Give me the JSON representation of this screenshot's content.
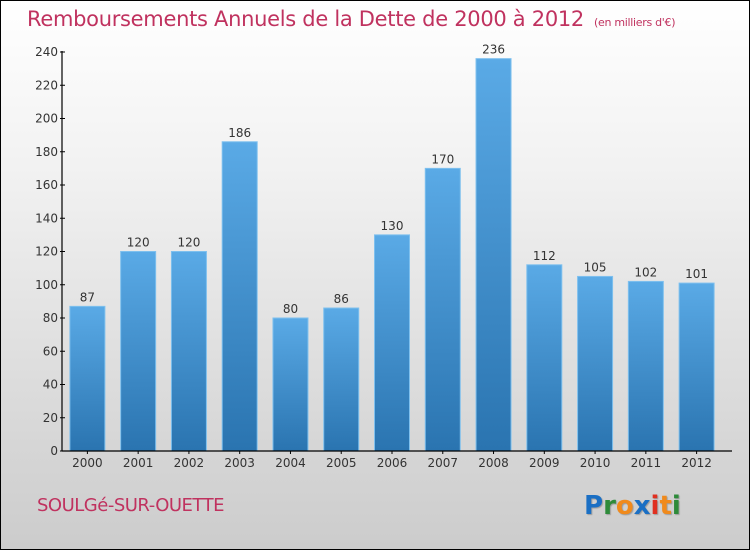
{
  "header": {
    "title": "Remboursements Annuels de la Dette de 2000 à 2012",
    "subtitle": "(en milliers d'€)"
  },
  "footer": {
    "city": "SOULGé-SUR-OUETTE",
    "logo": {
      "letters": [
        {
          "char": "P",
          "color": "#1a6fc4"
        },
        {
          "char": "r",
          "color": "#2e8b3a"
        },
        {
          "char": "o",
          "color": "#f08a1c"
        },
        {
          "char": "x",
          "color": "#1a6fc4"
        },
        {
          "char": "i",
          "color": "#e03020"
        },
        {
          "char": "t",
          "color": "#f08a1c"
        },
        {
          "char": "i",
          "color": "#2e8b3a"
        }
      ]
    }
  },
  "colors": {
    "accent": "#c0325f",
    "bar_top": "#5aaae6",
    "bar_bottom": "#2a74b0"
  },
  "chart_data": {
    "type": "bar",
    "title": "Remboursements Annuels de la Dette de 2000 à 2012",
    "subtitle": "(en milliers d'€)",
    "xlabel": "",
    "ylabel": "",
    "categories": [
      "2000",
      "2001",
      "2002",
      "2003",
      "2004",
      "2005",
      "2006",
      "2007",
      "2008",
      "2009",
      "2010",
      "2011",
      "2012"
    ],
    "values": [
      87,
      120,
      120,
      186,
      80,
      86,
      130,
      170,
      236,
      112,
      105,
      102,
      101
    ],
    "ylim": [
      0,
      240
    ],
    "yticks": [
      0,
      20,
      40,
      60,
      80,
      100,
      120,
      140,
      160,
      180,
      200,
      220,
      240
    ],
    "grid": false,
    "legend": "none",
    "data_labels": true
  }
}
